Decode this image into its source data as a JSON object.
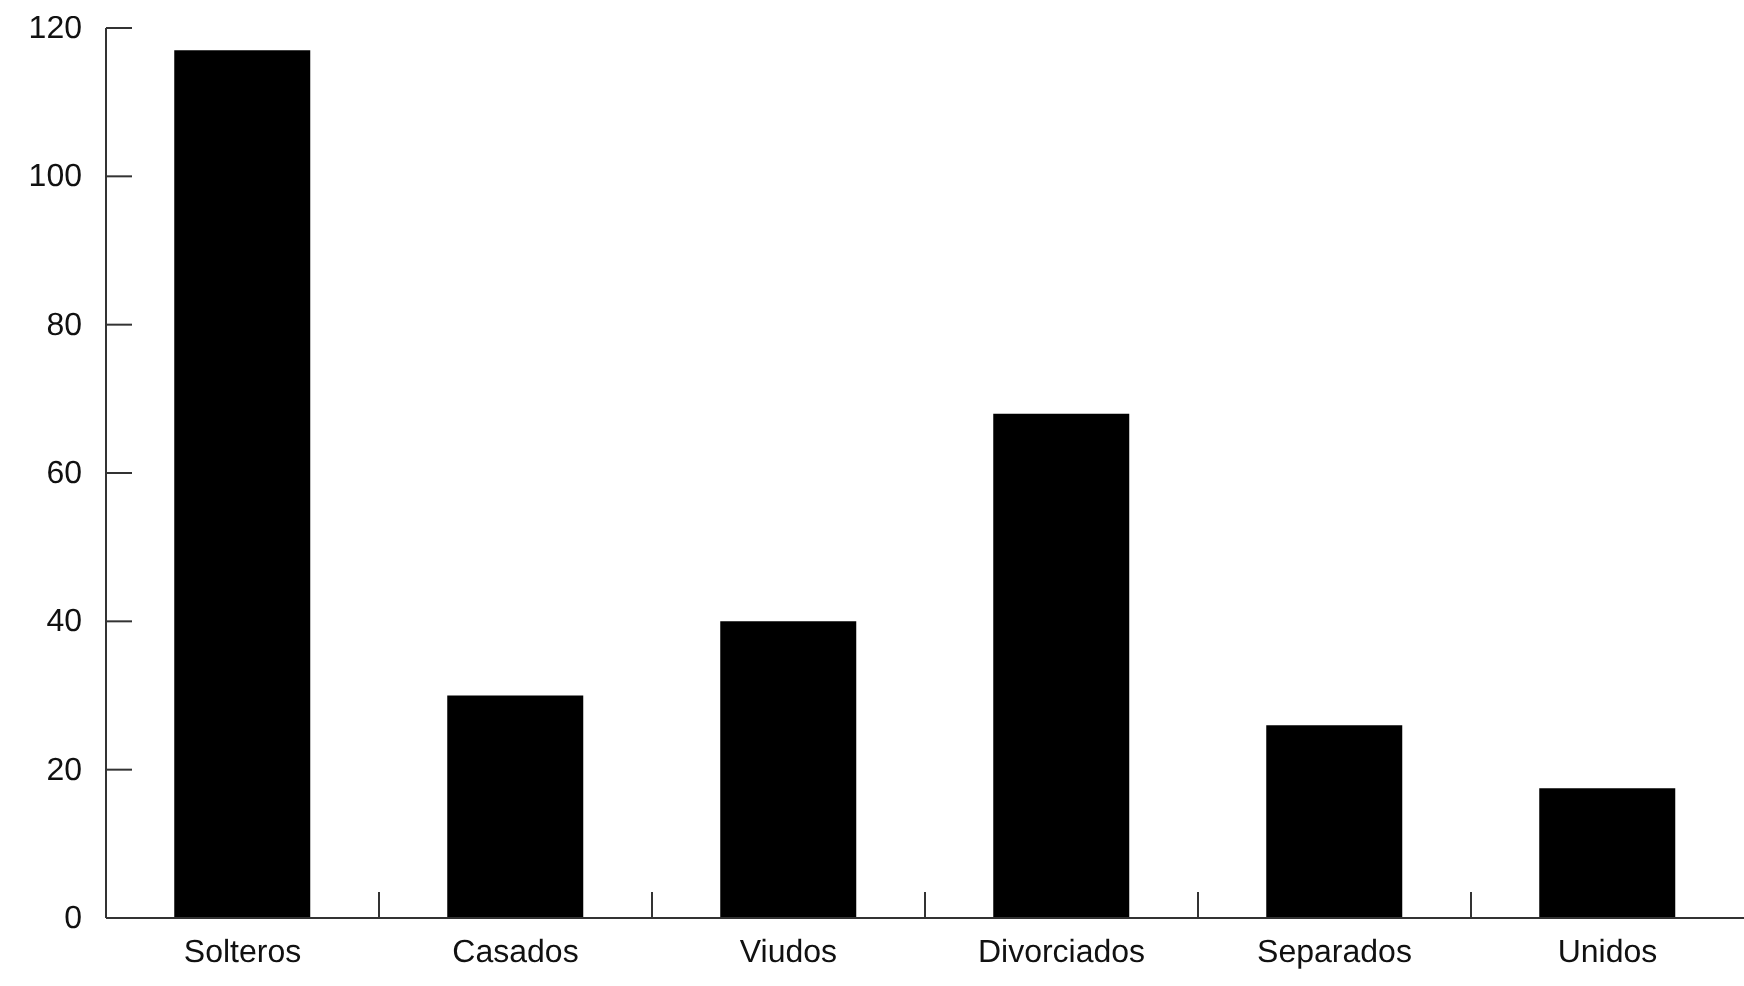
{
  "chart_data": {
    "type": "bar",
    "categories": [
      "Solteros",
      "Casados",
      "Viudos",
      "Divorciados",
      "Separados",
      "Unidos"
    ],
    "values": [
      117,
      30,
      40,
      68,
      26,
      17.5
    ],
    "color": "#000000",
    "ylim": [
      0,
      120
    ],
    "yticks": [
      0,
      20,
      40,
      60,
      80,
      100,
      120
    ],
    "grid": false,
    "legend": false
  }
}
